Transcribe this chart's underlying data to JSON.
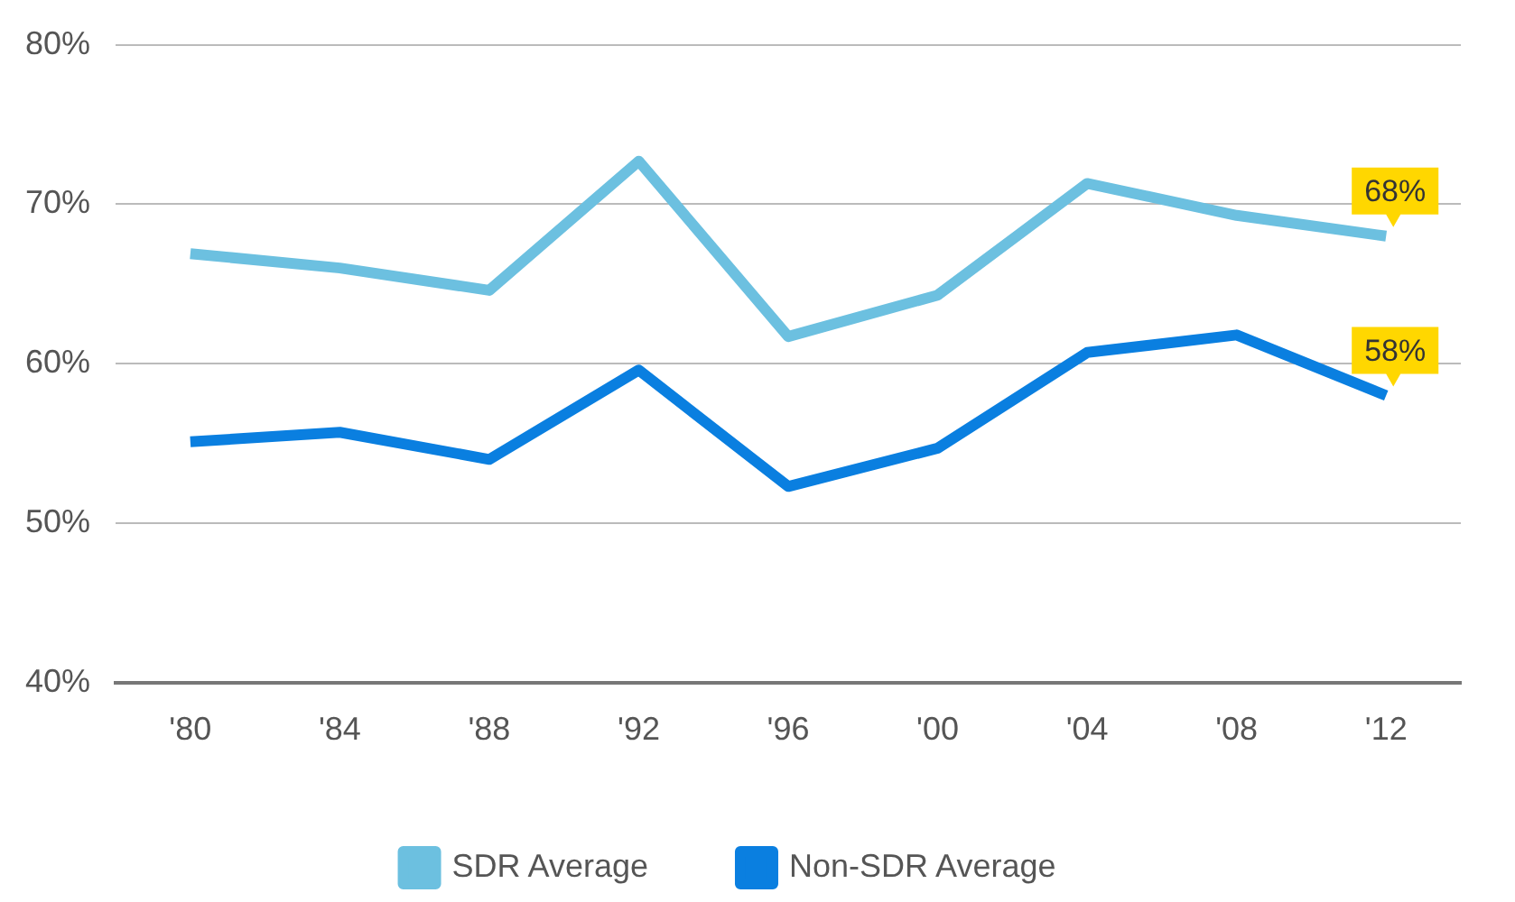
{
  "chart_data": {
    "type": "line",
    "categories": [
      "'80",
      "'84",
      "'88",
      "'92",
      "'96",
      "'00",
      "'04",
      "'08",
      "'12"
    ],
    "series": [
      {
        "name": "SDR Average",
        "color": "#6cc0e0",
        "values": [
          66.9,
          66.0,
          64.6,
          72.7,
          61.7,
          64.3,
          71.3,
          69.3,
          68
        ],
        "value_labels": [
          null,
          null,
          null,
          null,
          null,
          null,
          null,
          null,
          "68%"
        ]
      },
      {
        "name": "Non-SDR Average",
        "color": "#0a7fe0",
        "values": [
          55.1,
          55.7,
          54.0,
          59.6,
          52.3,
          54.7,
          60.7,
          61.8,
          58
        ],
        "value_labels": [
          null,
          null,
          null,
          null,
          null,
          null,
          null,
          null,
          "58%"
        ]
      }
    ],
    "ylim": [
      40,
      80
    ],
    "yticks": [
      {
        "value": 40,
        "label": "40%"
      },
      {
        "value": 50,
        "label": "50%"
      },
      {
        "value": 60,
        "label": "60%"
      },
      {
        "value": 70,
        "label": "70%"
      },
      {
        "value": 80,
        "label": "80%"
      }
    ],
    "grid": "y",
    "legend": "bottom",
    "marker": "none",
    "line_style": "solid"
  }
}
